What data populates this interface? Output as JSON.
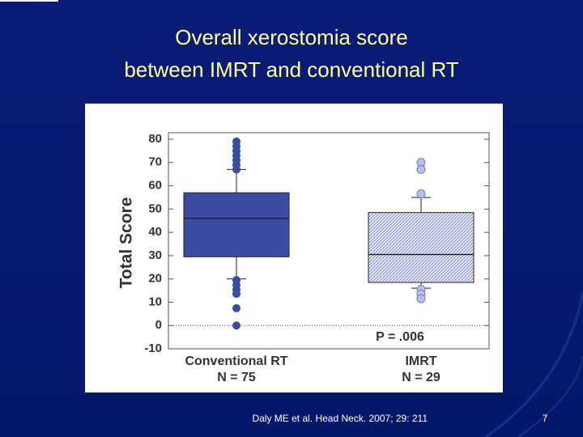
{
  "chart_data": {
    "type": "box",
    "title": [
      "Overall xerostomia score",
      "between IMRT and conventional RT"
    ],
    "y_label": "Total Score",
    "categories": [
      "Conventional RT",
      "IMRT"
    ],
    "n_labels": [
      "N = 75",
      "N = 29"
    ],
    "boxes": [
      {
        "min": 20,
        "q1": 29.5,
        "median": 46,
        "q3": 57,
        "max": 67,
        "outliers": [
          79,
          77,
          75,
          73,
          71,
          69,
          67,
          19.5,
          17.4,
          15.4,
          13.6,
          7.4,
          0
        ],
        "color": "#3b4da3",
        "pattern": "solid"
      },
      {
        "min": 16,
        "q1": 18.5,
        "median": 30.5,
        "q3": 48.5,
        "max": 55,
        "outliers": [
          70,
          67,
          56.5,
          15.5,
          13.5,
          11.5
        ],
        "color": "#7080c0",
        "pattern": "hatch"
      }
    ],
    "annotation": "P = .006",
    "reference_line": 0,
    "ylim": [
      -10,
      80
    ],
    "yticks": [
      -10,
      0,
      10,
      20,
      30,
      40,
      50,
      60,
      70,
      80
    ]
  },
  "citation": "Daly ME et al. Head Neck. 2007; 29: 211",
  "slide_number": "7"
}
